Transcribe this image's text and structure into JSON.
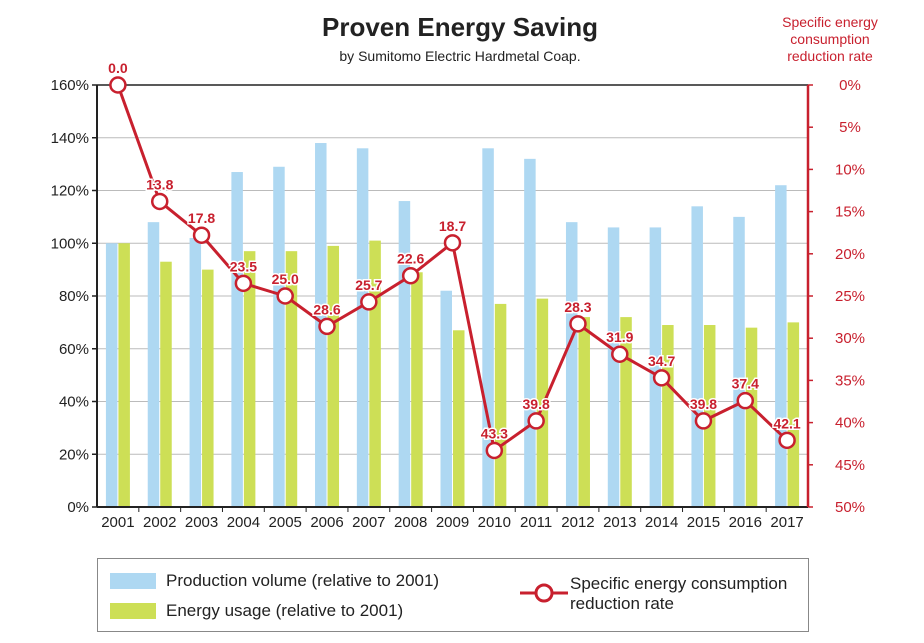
{
  "chart_data": {
    "type": "bar+line",
    "title": "Proven Energy Saving",
    "subtitle": "by Sumitomo Electric Hardmetal Coap.",
    "right_axis_title": [
      "Specific energy",
      "consumption",
      "reduction rate"
    ],
    "categories": [
      "2001",
      "2002",
      "2003",
      "2004",
      "2005",
      "2006",
      "2007",
      "2008",
      "2009",
      "2010",
      "2011",
      "2012",
      "2013",
      "2014",
      "2015",
      "2016",
      "2017"
    ],
    "left_axis": {
      "ticks": [
        "0%",
        "20%",
        "40%",
        "60%",
        "80%",
        "100%",
        "120%",
        "140%",
        "160%"
      ],
      "ylim": [
        0,
        160
      ]
    },
    "right_axis": {
      "ticks": [
        "0%",
        "5%",
        "10%",
        "15%",
        "20%",
        "25%",
        "30%",
        "35%",
        "40%",
        "45%",
        "50%"
      ],
      "ylim": [
        0,
        50
      ],
      "inverted": true
    },
    "series": [
      {
        "name": "Production volume (relative to 2001)",
        "type": "bar",
        "color": "#aed8f2",
        "values": [
          100,
          108,
          102,
          127,
          129,
          138,
          136,
          116,
          82,
          136,
          132,
          108,
          106,
          106,
          114,
          110,
          122
        ]
      },
      {
        "name": "Energy usage (relative to 2001)",
        "type": "bar",
        "color": "#cddf56",
        "values": [
          100,
          93,
          90,
          97,
          97,
          99,
          101,
          89,
          67,
          77,
          79,
          72,
          72,
          69,
          69,
          68,
          70
        ]
      },
      {
        "name": "Specific energy consumption reduction rate",
        "type": "line",
        "color": "#c8202e",
        "values": [
          0.0,
          13.8,
          17.8,
          23.5,
          25.0,
          28.6,
          25.7,
          22.6,
          18.7,
          43.3,
          39.8,
          28.3,
          31.9,
          34.7,
          39.8,
          37.4,
          42.1
        ],
        "labels": [
          "0.0",
          "13.8",
          "17.8",
          "23.5",
          "25.0",
          "28.6",
          "25.7",
          "22.6",
          "18.7",
          "43.3",
          "39.8",
          "28.3",
          "31.9",
          "34.7",
          "39.8",
          "37.4",
          "42.1"
        ]
      }
    ],
    "legend": {
      "production": "Production volume (relative to 2001)",
      "energy": "Energy usage (relative to 2001)",
      "line_line1": "Specific energy consumption",
      "line_line2": "reduction rate"
    }
  }
}
